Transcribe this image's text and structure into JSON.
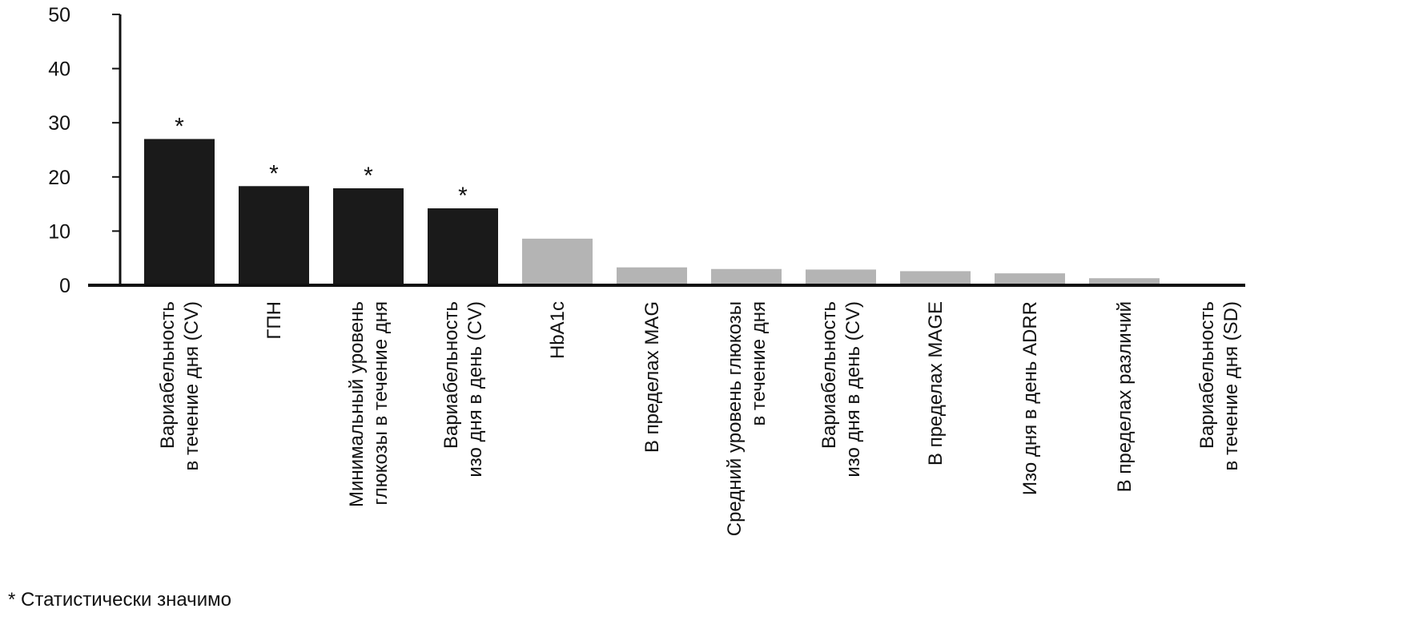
{
  "chart_data": {
    "type": "bar",
    "ylim": [
      0,
      50
    ],
    "yticks": [
      0,
      10,
      20,
      30,
      40,
      50
    ],
    "colors": {
      "significant": "#1a1a1a",
      "other": "#b4b4b4",
      "axis": "#111111"
    },
    "categories": [
      {
        "lines": [
          "Вариабельность",
          "в течение дня (CV)"
        ],
        "value": 27.0,
        "significant": true
      },
      {
        "lines": [
          "ГПН"
        ],
        "value": 18.3,
        "significant": true
      },
      {
        "lines": [
          "Минимальный уровень",
          "глюкозы в течение дня"
        ],
        "value": 17.9,
        "significant": true
      },
      {
        "lines": [
          "Вариабельность",
          "изо дня в день (CV)"
        ],
        "value": 14.2,
        "significant": true
      },
      {
        "lines": [
          "HbA1c"
        ],
        "value": 8.6,
        "significant": false
      },
      {
        "lines": [
          "В пределах MAG"
        ],
        "value": 3.3,
        "significant": false
      },
      {
        "lines": [
          "Средний уровень глюкозы",
          "в течение дня"
        ],
        "value": 3.0,
        "significant": false
      },
      {
        "lines": [
          "Вариабельность",
          "изо дня в день (CV)"
        ],
        "value": 2.9,
        "significant": false
      },
      {
        "lines": [
          "В пределах MAGE"
        ],
        "value": 2.6,
        "significant": false
      },
      {
        "lines": [
          "Изо дня в день ADRR"
        ],
        "value": 2.2,
        "significant": false
      },
      {
        "lines": [
          "В пределах различий"
        ],
        "value": 1.3,
        "significant": false
      },
      {
        "lines": [
          "Вариабельность",
          "в течение дня (SD)"
        ],
        "value": 0,
        "significant": false
      }
    ],
    "significance_marker": "*"
  },
  "footnote": "* Статистически значимо"
}
